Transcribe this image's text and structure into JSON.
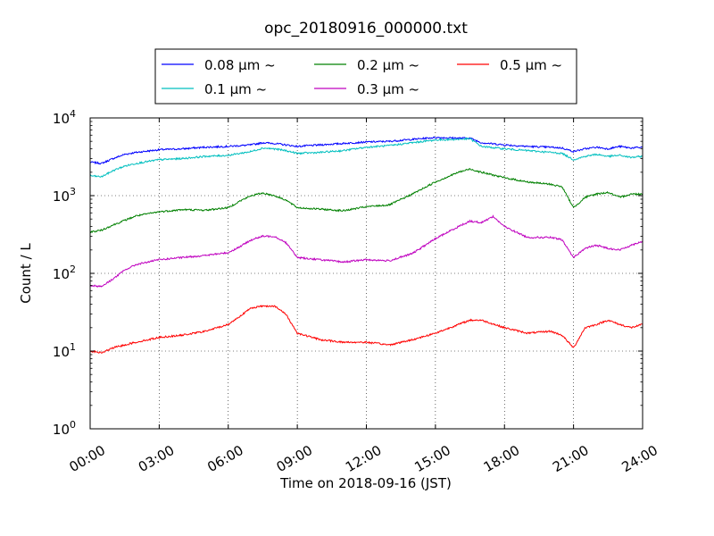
{
  "chart_data": {
    "type": "line",
    "title": "opc_20180916_000000.txt",
    "xlabel": "Time on 2018-09-16 (JST)",
    "ylabel": "Count / L",
    "x_unit": "hour of day",
    "xlim": [
      0,
      24
    ],
    "ylim": [
      1,
      10000
    ],
    "y_scale": "log",
    "grid": true,
    "legend": "top-center",
    "x_ticks": [
      {
        "value": 0,
        "label": "00:00"
      },
      {
        "value": 3,
        "label": "03:00"
      },
      {
        "value": 6,
        "label": "06:00"
      },
      {
        "value": 9,
        "label": "09:00"
      },
      {
        "value": 12,
        "label": "12:00"
      },
      {
        "value": 15,
        "label": "15:00"
      },
      {
        "value": 18,
        "label": "18:00"
      },
      {
        "value": 21,
        "label": "21:00"
      },
      {
        "value": 24,
        "label": "24:00"
      }
    ],
    "y_ticks": [
      {
        "value": 1,
        "base": "10",
        "exp": "0"
      },
      {
        "value": 10,
        "base": "10",
        "exp": "1"
      },
      {
        "value": 100,
        "base": "10",
        "exp": "2"
      },
      {
        "value": 1000,
        "base": "10",
        "exp": "3"
      },
      {
        "value": 10000,
        "base": "10",
        "exp": "4"
      }
    ],
    "series": [
      {
        "name": "0.08 μm ~",
        "color": "#0000ff",
        "x": [
          0,
          0.5,
          1,
          1.5,
          2,
          3,
          4,
          5,
          6,
          7,
          7.5,
          8,
          8.5,
          9,
          10,
          11,
          12,
          13,
          14,
          15,
          16,
          16.5,
          17,
          18,
          19,
          20,
          20.5,
          21,
          21.5,
          22,
          22.5,
          23,
          23.5,
          24
        ],
        "y": [
          2700,
          2600,
          3000,
          3400,
          3600,
          3900,
          4000,
          4200,
          4300,
          4500,
          4800,
          4700,
          4500,
          4300,
          4500,
          4700,
          4900,
          5000,
          5300,
          5600,
          5500,
          5500,
          4800,
          4500,
          4300,
          4200,
          4100,
          3700,
          4000,
          4200,
          4000,
          4300,
          4100,
          4200
        ]
      },
      {
        "name": "0.1 μm ~",
        "color": "#00bfbf",
        "x": [
          0,
          0.5,
          1,
          1.5,
          2,
          3,
          4,
          5,
          6,
          7,
          7.5,
          8,
          8.5,
          9,
          10,
          11,
          12,
          13,
          14,
          15,
          16,
          16.5,
          17,
          18,
          19,
          20,
          20.5,
          21,
          21.5,
          22,
          22.5,
          23,
          23.5,
          24
        ],
        "y": [
          1800,
          1750,
          2100,
          2400,
          2600,
          2900,
          3000,
          3200,
          3300,
          3700,
          4100,
          4000,
          3800,
          3500,
          3600,
          3800,
          4200,
          4400,
          4800,
          5200,
          5300,
          5400,
          4300,
          4000,
          3800,
          3600,
          3500,
          2900,
          3200,
          3400,
          3200,
          3300,
          3100,
          3200
        ]
      },
      {
        "name": "0.2 μm ~",
        "color": "#008000",
        "x": [
          0,
          0.5,
          1,
          1.5,
          2,
          3,
          4,
          5,
          6,
          6.5,
          7,
          7.5,
          8,
          8.5,
          9,
          10,
          11,
          12,
          13,
          14,
          15,
          16,
          16.5,
          17,
          18,
          19,
          20,
          20.5,
          21,
          21.5,
          22,
          22.5,
          23,
          23.5,
          24
        ],
        "y": [
          340,
          360,
          420,
          480,
          550,
          620,
          660,
          650,
          700,
          850,
          1000,
          1080,
          1000,
          880,
          700,
          670,
          640,
          720,
          760,
          1050,
          1500,
          2000,
          2200,
          2000,
          1700,
          1500,
          1400,
          1300,
          700,
          950,
          1050,
          1100,
          950,
          1050,
          1050
        ]
      },
      {
        "name": "0.3 μm ~",
        "color": "#bf00bf",
        "x": [
          0,
          0.5,
          1,
          1.5,
          2,
          3,
          4,
          5,
          6,
          6.5,
          7,
          7.5,
          8,
          8.5,
          9,
          10,
          11,
          12,
          13,
          14,
          15,
          16,
          16.5,
          17,
          17.5,
          18,
          19,
          20,
          20.5,
          21,
          21.5,
          22,
          22.5,
          23,
          23.5,
          24
        ],
        "y": [
          70,
          68,
          85,
          110,
          130,
          150,
          160,
          170,
          185,
          220,
          270,
          300,
          300,
          250,
          160,
          150,
          140,
          150,
          145,
          180,
          280,
          400,
          470,
          450,
          540,
          400,
          290,
          290,
          270,
          160,
          210,
          230,
          210,
          200,
          230,
          260
        ]
      },
      {
        "name": "0.5 μm ~",
        "color": "#ff0000",
        "x": [
          0,
          0.5,
          1,
          1.5,
          2,
          3,
          4,
          5,
          6,
          6.5,
          7,
          7.5,
          8,
          8.5,
          9,
          10,
          11,
          12,
          13,
          14,
          15,
          16,
          16.5,
          17,
          18,
          19,
          20,
          20.5,
          21,
          21.5,
          22,
          22.5,
          23,
          23.5,
          24
        ],
        "y": [
          10,
          9.5,
          11,
          12,
          13,
          15,
          16,
          18,
          22,
          28,
          36,
          38,
          38,
          30,
          17,
          14,
          13,
          13,
          12,
          14,
          17,
          22,
          25,
          25,
          20,
          17,
          18,
          16,
          11,
          20,
          22,
          25,
          22,
          20,
          22
        ]
      }
    ]
  }
}
